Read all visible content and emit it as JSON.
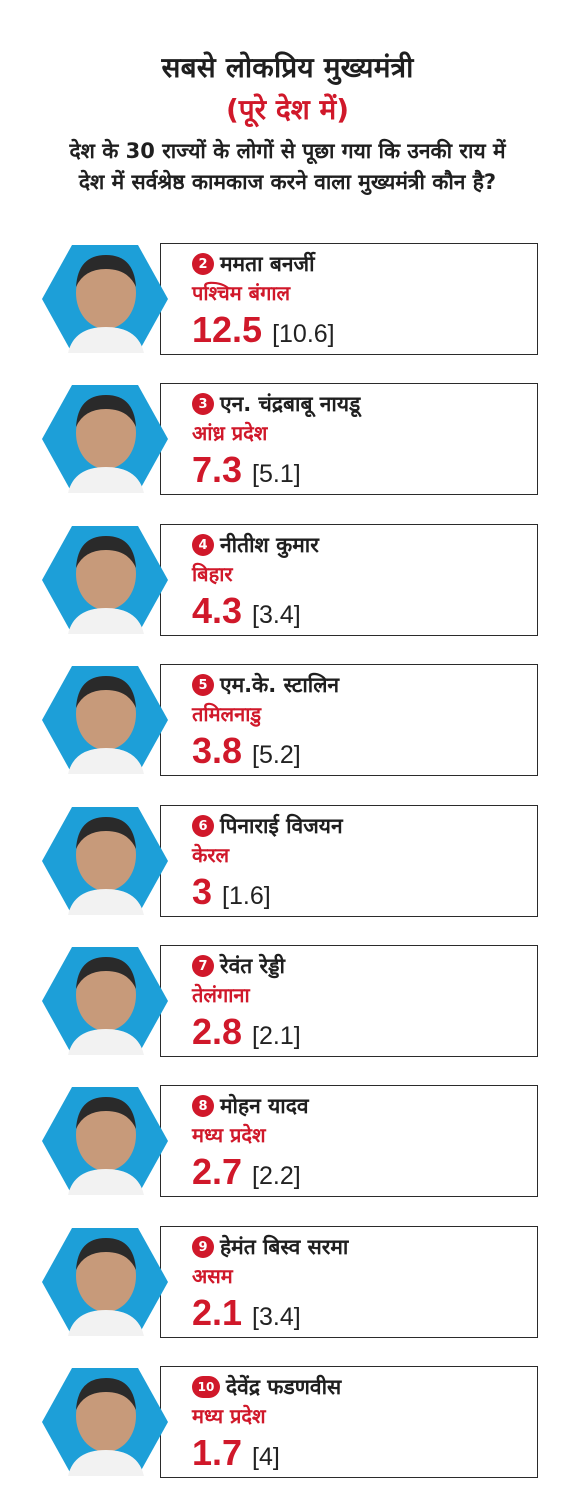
{
  "header": {
    "title": "सबसे लोकप्रिय मुख्यमंत्री",
    "subtitle": "(पूरे देश में)",
    "question": "देश के 30 राज्यों के लोगों से पूछा गया कि उनकी राय में देश में सर्वश्रेष्ठ कामकाज करने वाला मुख्यमंत्री कौन है?"
  },
  "colors": {
    "accent": "#d0182a",
    "hexagon": "#1d9fd8",
    "text": "#1f1f1f"
  },
  "ministers": [
    {
      "rank": "2",
      "name": "ममता बनर्जी",
      "state": "पश्चिम बंगाल",
      "score": "12.5",
      "previous": "[10.6]"
    },
    {
      "rank": "3",
      "name": "एन. चंद्रबाबू नायडू",
      "state": "आंध्र प्रदेश",
      "score": "7.3",
      "previous": "[5.1]"
    },
    {
      "rank": "4",
      "name": "नीतीश कुमार",
      "state": "बिहार",
      "score": "4.3",
      "previous": "[3.4]"
    },
    {
      "rank": "5",
      "name": "एम.के. स्टालिन",
      "state": "तमिलनाडु",
      "score": "3.8",
      "previous": "[5.2]"
    },
    {
      "rank": "6",
      "name": "पिनाराई विजयन",
      "state": "केरल",
      "score": "3",
      "previous": "[1.6]"
    },
    {
      "rank": "7",
      "name": "रेवंत रेड्डी",
      "state": "तेलंगाना",
      "score": "2.8",
      "previous": "[2.1]"
    },
    {
      "rank": "8",
      "name": "मोहन यादव",
      "state": "मध्य प्रदेश",
      "score": "2.7",
      "previous": "[2.2]"
    },
    {
      "rank": "9",
      "name": "हेमंत बिस्व सरमा",
      "state": "असम",
      "score": "2.1",
      "previous": "[3.4]"
    },
    {
      "rank": "10",
      "name": "देवेंद्र फडणवीस",
      "state": "मध्य प्रदेश",
      "score": "1.7",
      "previous": "[4]"
    }
  ]
}
